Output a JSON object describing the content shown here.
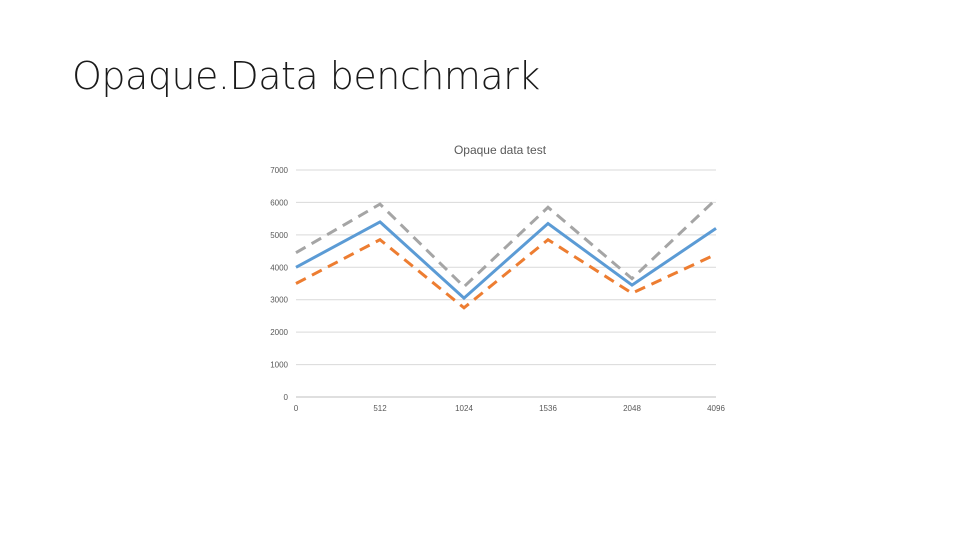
{
  "slide": {
    "title": "Opaque.Data benchmark"
  },
  "chart_data": {
    "type": "line",
    "title": "Opaque data test",
    "xlabel": "",
    "ylabel": "",
    "x_tick_labels": [
      "0",
      "512",
      "1024",
      "1536",
      "2048",
      "4096"
    ],
    "y_ticks": [
      0,
      1000,
      2000,
      3000,
      4000,
      5000,
      6000,
      7000
    ],
    "ylim": [
      0,
      7000
    ],
    "grid": true,
    "legend": "none",
    "series": [
      {
        "values": [
          4450,
          5950,
          3400,
          5850,
          3650,
          6100
        ],
        "color": "#a5a5a5",
        "style": "dashed"
      },
      {
        "values": [
          4000,
          5400,
          3050,
          5350,
          3450,
          5200
        ],
        "color": "#5b9bd5",
        "style": "solid"
      },
      {
        "values": [
          3500,
          4850,
          2750,
          4850,
          3200,
          4400
        ],
        "color": "#ed7d31",
        "style": "dashed"
      }
    ]
  }
}
